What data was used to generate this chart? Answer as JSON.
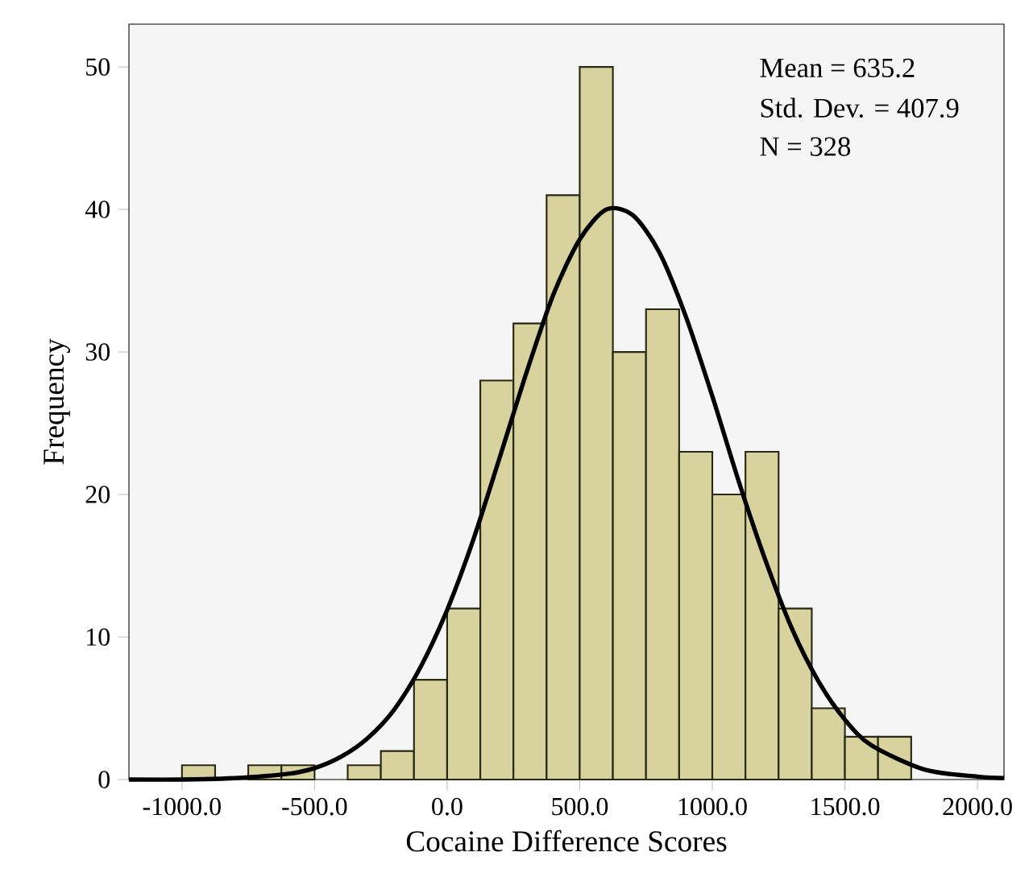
{
  "chart_data": {
    "type": "histogram",
    "xlabel": "Cocaine Difference Scores",
    "ylabel": "Frequency",
    "annotations": [
      "Mean = 635.2",
      "Std. Dev. = 407.9",
      "N = 328"
    ],
    "bins": [
      -1000,
      -875,
      -750,
      -625,
      -500,
      -375,
      -250,
      -125,
      0,
      125,
      250,
      375,
      500,
      625,
      750,
      875,
      1000,
      1125,
      1250,
      1375,
      1500,
      1625,
      1750
    ],
    "values": [
      1,
      0,
      1,
      1,
      0,
      1,
      2,
      7,
      12,
      28,
      32,
      41,
      50,
      30,
      33,
      23,
      20,
      23,
      12,
      5,
      3,
      3
    ],
    "color": "#d8d39e",
    "series": [
      {
        "type": "line",
        "color": "#000000",
        "x": [
          -1200,
          -1000,
          -800,
          -600,
          -500,
          -400,
          -300,
          -200,
          -100,
          0,
          100,
          200,
          300,
          400,
          500,
          600,
          700,
          800,
          900,
          1000,
          1100,
          1200,
          1300,
          1400,
          1500,
          1600,
          1800,
          2000,
          2100
        ],
        "values": [
          0,
          0,
          0.1,
          0.4,
          0.8,
          1.6,
          2.9,
          4.9,
          7.9,
          11.9,
          16.9,
          22.7,
          28.6,
          34.0,
          37.9,
          40.0,
          39.6,
          37.0,
          32.5,
          26.9,
          20.9,
          15.4,
          10.6,
          6.9,
          4.2,
          2.4,
          0.7,
          0.2,
          0.1
        ]
      }
    ],
    "xlim": [
      -1200,
      2100
    ],
    "ylim": [
      0,
      53
    ],
    "xticks": [
      {
        "value": -1000,
        "label": "-1000.0"
      },
      {
        "value": -500,
        "label": "-500.0"
      },
      {
        "value": 0,
        "label": "0.0"
      },
      {
        "value": 500,
        "label": "500.0"
      },
      {
        "value": 1000,
        "label": "1000.0"
      },
      {
        "value": 1500,
        "label": "1500.0"
      },
      {
        "value": 2000,
        "label": "2000.0"
      }
    ],
    "yticks": [
      0,
      10,
      20,
      30,
      40,
      50
    ],
    "grid": false
  }
}
